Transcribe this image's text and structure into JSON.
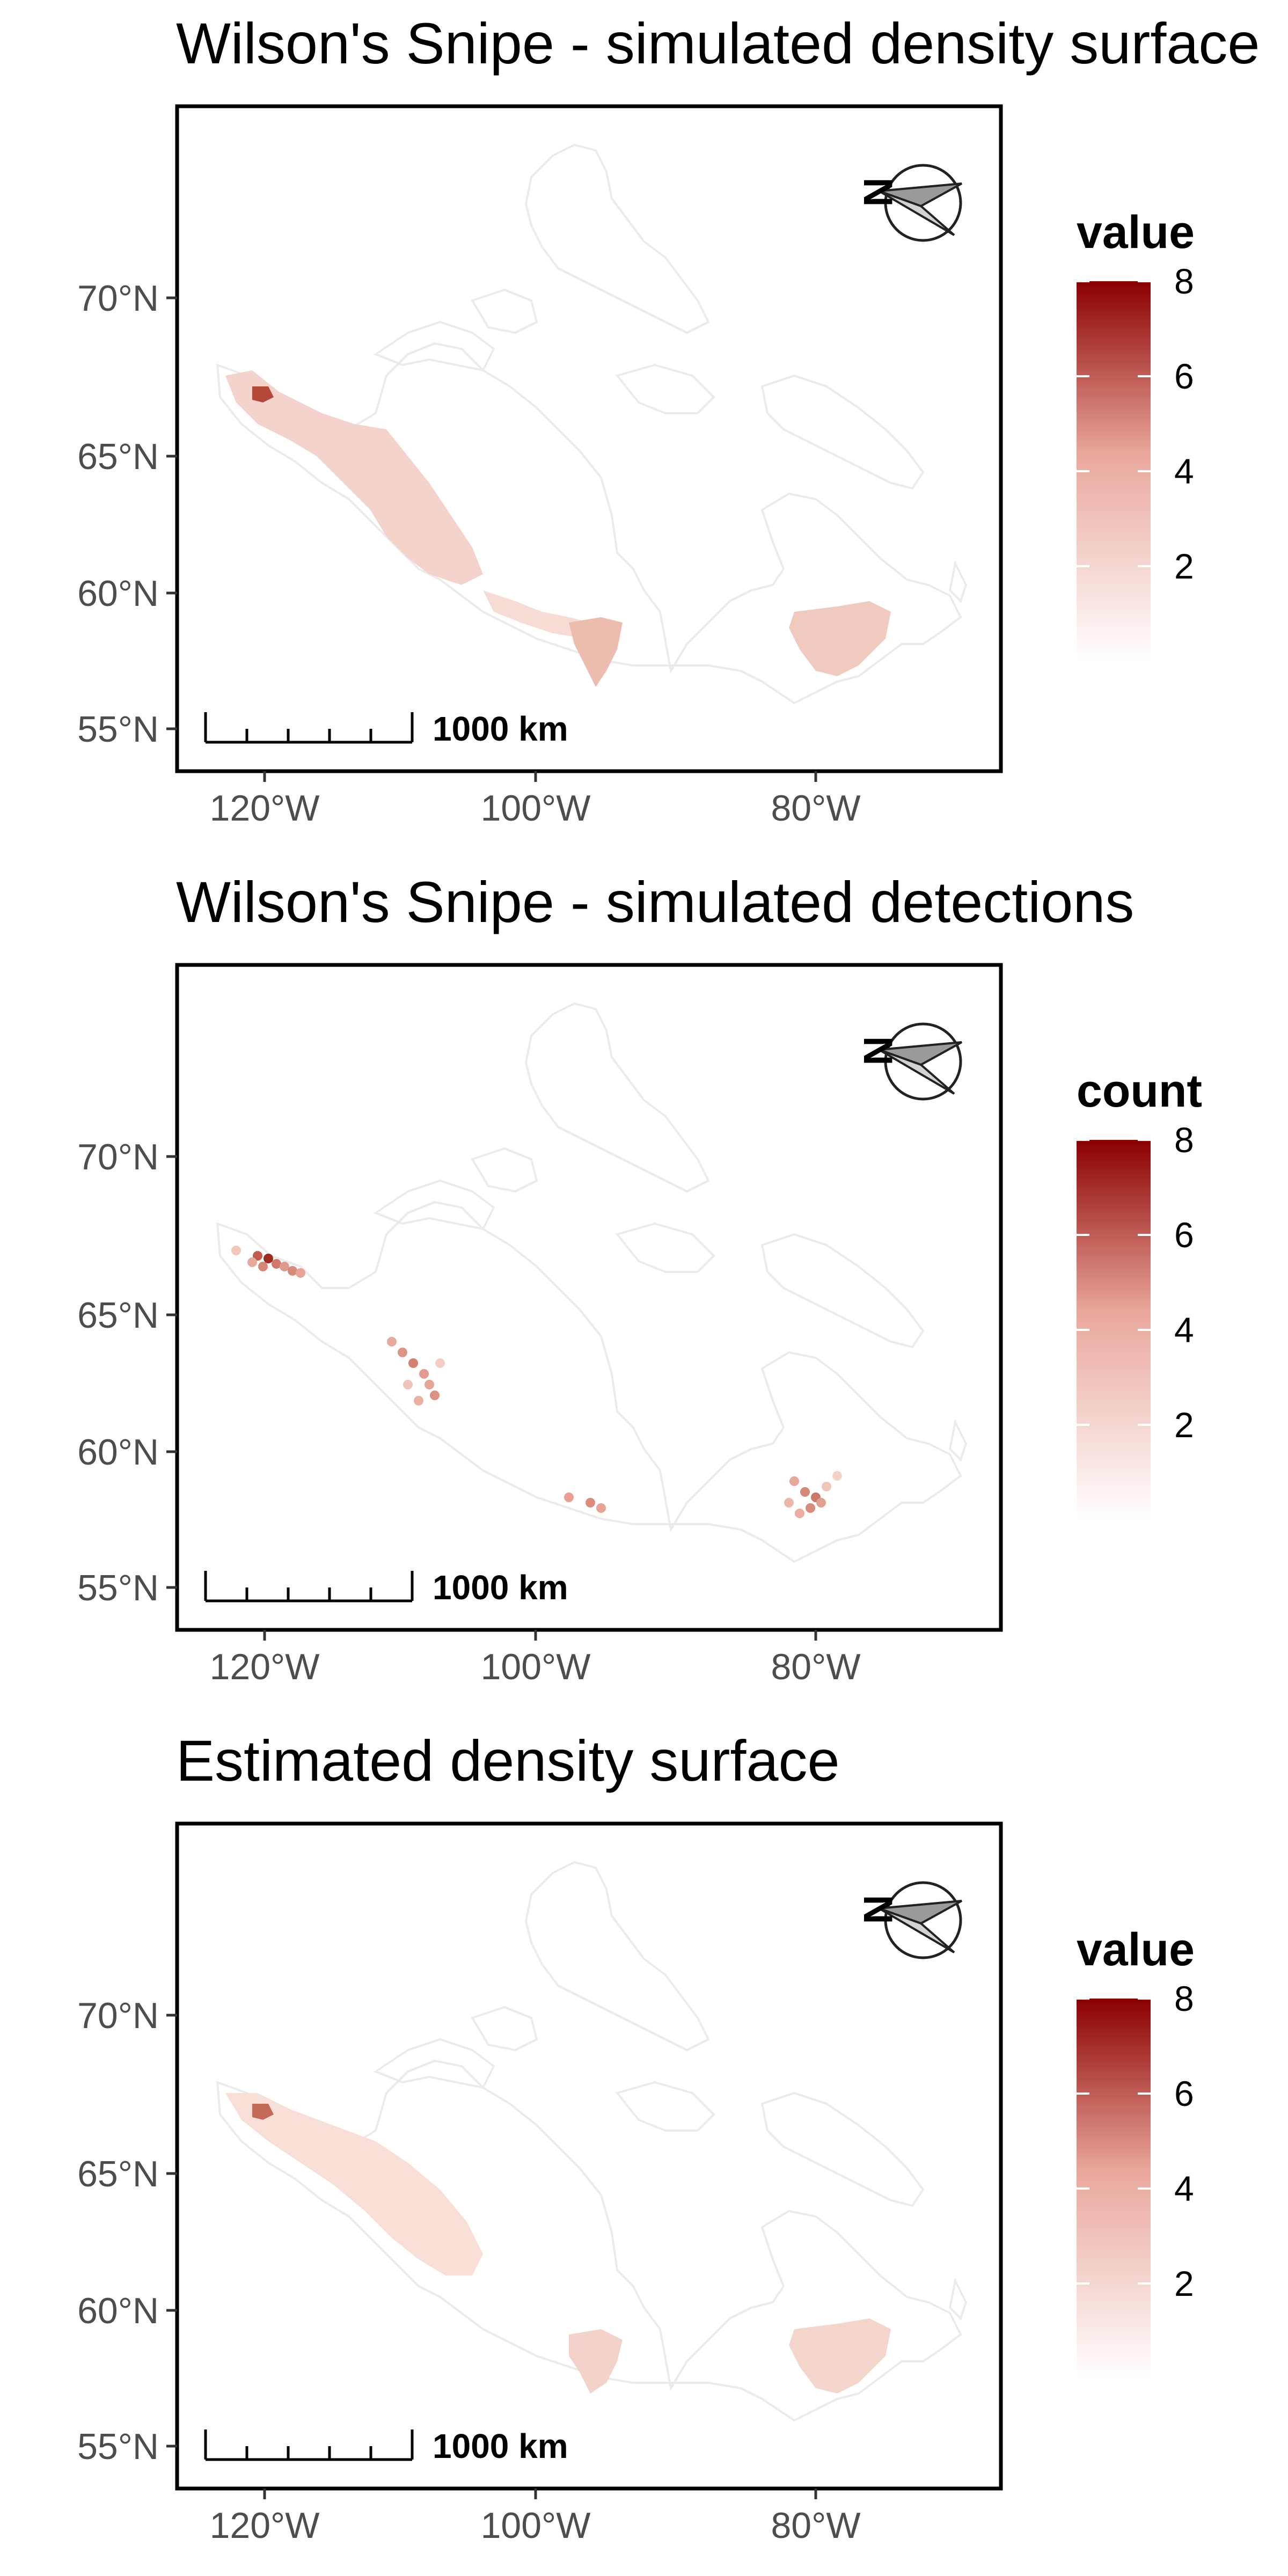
{
  "colors": {
    "background": "#ffffff",
    "frame": "#000000",
    "land_outline": "#ebebeb",
    "scale_low": "#ffffff",
    "scale_mid": "#e8a69a",
    "scale_high": "#8b0000",
    "tick_text": "#4d4d4d"
  },
  "map": {
    "y_ticks": [
      "70°N",
      "65°N",
      "60°N",
      "55°N"
    ],
    "x_ticks": [
      "120°W",
      "100°W",
      "80°W"
    ],
    "scale_bar_label": "1000 km",
    "north_arrow_label": "N",
    "north_arrow_icon": "north-arrow-icon",
    "legend_ticks": [
      {
        "label": "8",
        "value": 8
      },
      {
        "label": "6",
        "value": 6
      },
      {
        "label": "4",
        "value": 4
      },
      {
        "label": "2",
        "value": 2
      }
    ],
    "legend_range": [
      0,
      8
    ]
  },
  "panels": [
    {
      "id": "simulated-density",
      "title": "Wilson's Snipe - simulated density surface",
      "legend_title": "value",
      "layer": "raster"
    },
    {
      "id": "simulated-detections",
      "title": "Wilson's Snipe - simulated detections",
      "legend_title": "count",
      "layer": "points"
    },
    {
      "id": "estimated-density",
      "title": "Estimated density surface",
      "legend_title": "value",
      "layer": "raster-smooth"
    }
  ]
}
